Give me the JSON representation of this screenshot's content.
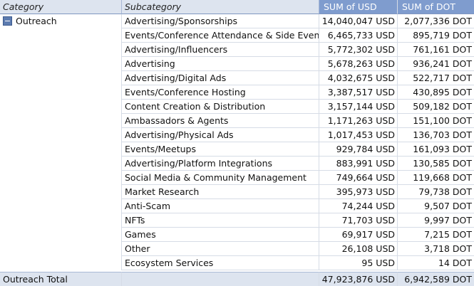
{
  "headers": {
    "category": "Category",
    "subcategory": "Subcategory",
    "usd": "SUM of USD",
    "dot": "SUM of DOT"
  },
  "group": {
    "name": "Outreach",
    "toggle_icon": "minus-collapse-icon"
  },
  "rows": [
    {
      "subcategory": "Advertising/Sponsorships",
      "usd": "14,040,047 USD",
      "dot": "2,077,336 DOT"
    },
    {
      "subcategory": "Events/Conference Attendance & Side Events",
      "usd": "6,465,733 USD",
      "dot": "895,719 DOT"
    },
    {
      "subcategory": "Advertising/Influencers",
      "usd": "5,772,302 USD",
      "dot": "761,161 DOT"
    },
    {
      "subcategory": "Advertising",
      "usd": "5,678,263 USD",
      "dot": "936,241 DOT"
    },
    {
      "subcategory": "Advertising/Digital Ads",
      "usd": "4,032,675 USD",
      "dot": "522,717 DOT"
    },
    {
      "subcategory": "Events/Conference Hosting",
      "usd": "3,387,517 USD",
      "dot": "430,895 DOT"
    },
    {
      "subcategory": "Content Creation & Distribution",
      "usd": "3,157,144 USD",
      "dot": "509,182 DOT"
    },
    {
      "subcategory": "Ambassadors & Agents",
      "usd": "1,171,263 USD",
      "dot": "151,100 DOT"
    },
    {
      "subcategory": "Advertising/Physical Ads",
      "usd": "1,017,453 USD",
      "dot": "136,703 DOT"
    },
    {
      "subcategory": "Events/Meetups",
      "usd": "929,784 USD",
      "dot": "161,093 DOT"
    },
    {
      "subcategory": "Advertising/Platform Integrations",
      "usd": "883,991 USD",
      "dot": "130,585 DOT"
    },
    {
      "subcategory": "Social Media & Community Management",
      "usd": "749,664 USD",
      "dot": "119,668 DOT"
    },
    {
      "subcategory": "Market Research",
      "usd": "395,973 USD",
      "dot": "79,738 DOT"
    },
    {
      "subcategory": "Anti-Scam",
      "usd": "74,244 USD",
      "dot": "9,507 DOT"
    },
    {
      "subcategory": "NFTs",
      "usd": "71,703 USD",
      "dot": "9,997 DOT"
    },
    {
      "subcategory": "Games",
      "usd": "69,917 USD",
      "dot": "7,215 DOT"
    },
    {
      "subcategory": "Other",
      "usd": "26,108 USD",
      "dot": "3,718 DOT"
    },
    {
      "subcategory": "Ecosystem Services",
      "usd": "95 USD",
      "dot": "14 DOT"
    }
  ],
  "total": {
    "label": "Outreach Total",
    "usd": "47,923,876 USD",
    "dot": "6,942,589 DOT"
  },
  "colors": {
    "header_bg": "#dde4ef",
    "value_header_bg": "#7f9cce",
    "grid": "#d6dce6",
    "toggle": "#5d7cb0"
  }
}
